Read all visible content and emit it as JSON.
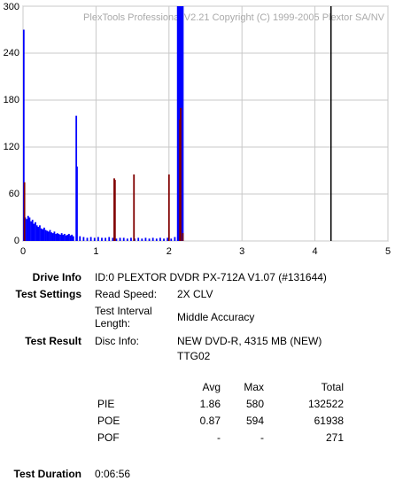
{
  "chart_data": {
    "type": "bar",
    "annotation": "PlexTools Professional V2.21 Copyright (C) 1999-2005 Plextor SA/NV",
    "xlim": [
      0,
      5
    ],
    "xticks": [
      0,
      1,
      2,
      3,
      4,
      5
    ],
    "ylim": [
      0,
      300
    ],
    "yticks": [
      0,
      60,
      120,
      180,
      240,
      300
    ],
    "grid": true,
    "marker_x": 4.22,
    "marker_color": "#000000",
    "series": [
      {
        "color": "#0000ff",
        "x": [
          0.01,
          0.03,
          0.05,
          0.07,
          0.09,
          0.11,
          0.13,
          0.15,
          0.17,
          0.19,
          0.21,
          0.23,
          0.25,
          0.27,
          0.29,
          0.31,
          0.33,
          0.35,
          0.37,
          0.39,
          0.41,
          0.43,
          0.45,
          0.47,
          0.49,
          0.51,
          0.53,
          0.55,
          0.57,
          0.59,
          0.61,
          0.63,
          0.65,
          0.67,
          0.69,
          0.73,
          0.74,
          0.78,
          0.83,
          0.88,
          0.93,
          0.98,
          1.03,
          1.08,
          1.13,
          1.18,
          1.23,
          1.28,
          1.33,
          1.38,
          1.43,
          1.48,
          1.53,
          1.58,
          1.63,
          1.68,
          1.73,
          1.78,
          1.83,
          1.88,
          1.93,
          1.98,
          2.03,
          2.08,
          2.12,
          2.13,
          2.14,
          2.15,
          2.16,
          2.17,
          2.18,
          2.19
        ],
        "values": [
          270,
          30,
          28,
          32,
          30,
          25,
          27,
          22,
          24,
          20,
          18,
          20,
          16,
          15,
          17,
          14,
          13,
          12,
          14,
          11,
          10,
          12,
          9,
          10,
          9,
          8,
          10,
          8,
          9,
          7,
          8,
          9,
          7,
          8,
          6,
          160,
          95,
          6,
          5,
          4,
          5,
          4,
          5,
          4,
          4,
          5,
          4,
          3,
          4,
          4,
          3,
          4,
          3,
          4,
          3,
          4,
          3,
          4,
          3,
          4,
          3,
          4,
          3,
          5,
          300,
          300,
          300,
          300,
          300,
          300,
          300,
          300
        ]
      },
      {
        "color": "#800000",
        "x": [
          0.02,
          1.25,
          1.26,
          1.52,
          2.0,
          2.15,
          2.16,
          2.19
        ],
        "values": [
          75,
          80,
          78,
          85,
          85,
          155,
          170,
          10
        ]
      }
    ]
  },
  "report": {
    "drive_info": {
      "label": "Drive Info",
      "value": "ID:0 PLEXTOR DVDR PX-712A V1.07 (#131644)"
    },
    "test_settings": {
      "label": "Test Settings",
      "read_speed": {
        "label": "Read Speed:",
        "value": "2X CLV"
      },
      "interval": {
        "label": "Test Interval Length:",
        "value": "Middle Accuracy"
      }
    },
    "test_result": {
      "label": "Test Result",
      "disc_info": {
        "label": "Disc Info:",
        "value": [
          "NEW DVD-R, 4315 MB (NEW)",
          "TTG02"
        ]
      }
    },
    "table": {
      "headers": [
        "Avg",
        "Max",
        "Total"
      ],
      "rows": [
        [
          "PIE",
          1.86,
          580,
          132522
        ],
        [
          "POE",
          0.87,
          594,
          61938
        ],
        [
          "POF",
          "-",
          "-",
          271
        ]
      ]
    },
    "test_duration": {
      "label": "Test Duration",
      "value": "0:06:56"
    }
  }
}
